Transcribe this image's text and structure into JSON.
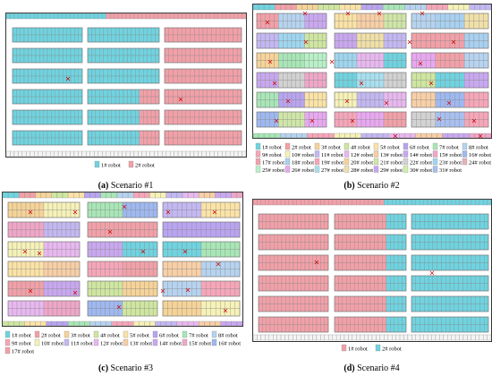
{
  "colors": {
    "r1": "#6fd3e0",
    "r2": "#f2a0a8",
    "r3": "#f6d398",
    "r4": "#cfe6a0",
    "r5": "#fbe3a6",
    "r6": "#b8a4f0",
    "r7": "#a8e6b6",
    "r8": "#b6d3f0",
    "r9": "#f6a6b8",
    "r10": "#f6f2b8",
    "r11": "#c3b8f2",
    "r12": "#e8b8f0",
    "r13": "#f8cfa6",
    "r14": "#c9a8f0",
    "r15": "#f0a6c8",
    "r16": "#9fb8f0",
    "r17": "#f2a0a8",
    "r18": "#a8d0f0",
    "r19": "#f6a6b8",
    "r20": "#f6d398",
    "r21": "#d0e6a8",
    "r22": "#d2d2d2",
    "r23": "#9fd6f0",
    "r24": "#e8b0b8",
    "r25": "#b8f0c8",
    "r26": "#e8a8f0",
    "r27": "#a8e0f0",
    "r28": "#f0e0a8",
    "r29": "#c8a8f0",
    "r30": "#d0f0a8",
    "r31": "#a8c0f0",
    "marker": "#cc0000",
    "grid": "#888888"
  },
  "panels": [
    {
      "id": "a",
      "caption_tag": "(a)",
      "caption_text": "Scenario #1",
      "legend": [
        {
          "color_key": "r1",
          "label": "1# robot"
        },
        {
          "color_key": "r2",
          "label": "2# robot"
        }
      ]
    },
    {
      "id": "b",
      "caption_tag": "(b)",
      "caption_text": "Scenario #2",
      "legend": [
        {
          "color_key": "r1",
          "label": "1# robot"
        },
        {
          "color_key": "r2",
          "label": "2# robot"
        },
        {
          "color_key": "r3",
          "label": "3# robot"
        },
        {
          "color_key": "r4",
          "label": "4# robot"
        },
        {
          "color_key": "r5",
          "label": "5# robot"
        },
        {
          "color_key": "r6",
          "label": "6# robot"
        },
        {
          "color_key": "r7",
          "label": "7# robot"
        },
        {
          "color_key": "r8",
          "label": "8# robot"
        },
        {
          "color_key": "r9",
          "label": "9# robot"
        },
        {
          "color_key": "r10",
          "label": "10# robot"
        },
        {
          "color_key": "r11",
          "label": "11# robot"
        },
        {
          "color_key": "r12",
          "label": "12# robot"
        },
        {
          "color_key": "r13",
          "label": "13# robot"
        },
        {
          "color_key": "r14",
          "label": "14# robot"
        },
        {
          "color_key": "r15",
          "label": "15# robot"
        },
        {
          "color_key": "r16",
          "label": "16# robot"
        },
        {
          "color_key": "r17",
          "label": "17# robot"
        },
        {
          "color_key": "r18",
          "label": "18# robot"
        },
        {
          "color_key": "r19",
          "label": "19# robot"
        },
        {
          "color_key": "r20",
          "label": "20# robot"
        },
        {
          "color_key": "r21",
          "label": "21# robot"
        },
        {
          "color_key": "r22",
          "label": "22# robot"
        },
        {
          "color_key": "r23",
          "label": "23# robot"
        },
        {
          "color_key": "r24",
          "label": "24# robot"
        },
        {
          "color_key": "r25",
          "label": "25# robot"
        },
        {
          "color_key": "r26",
          "label": "26# robot"
        },
        {
          "color_key": "r27",
          "label": "27# robot"
        },
        {
          "color_key": "r28",
          "label": "28# robot"
        },
        {
          "color_key": "r29",
          "label": "29# robot"
        },
        {
          "color_key": "r30",
          "label": "30# robot"
        },
        {
          "color_key": "r31",
          "label": "31# robot"
        }
      ]
    },
    {
      "id": "c",
      "caption_tag": "(c)",
      "caption_text": "Scenario #3",
      "legend": [
        {
          "color_key": "r1",
          "label": "1# robot"
        },
        {
          "color_key": "r2",
          "label": "2# robot"
        },
        {
          "color_key": "r3",
          "label": "3# robot"
        },
        {
          "color_key": "r4",
          "label": "4# robot"
        },
        {
          "color_key": "r5",
          "label": "5# robot"
        },
        {
          "color_key": "r6",
          "label": "6# robot"
        },
        {
          "color_key": "r7",
          "label": "7# robot"
        },
        {
          "color_key": "r8",
          "label": "8# robot"
        },
        {
          "color_key": "r9",
          "label": "9# robot"
        },
        {
          "color_key": "r10",
          "label": "10# robot"
        },
        {
          "color_key": "r11",
          "label": "11# robot"
        },
        {
          "color_key": "r12",
          "label": "12# robot"
        },
        {
          "color_key": "r13",
          "label": "13# robot"
        },
        {
          "color_key": "r14",
          "label": "14# robot"
        },
        {
          "color_key": "r15",
          "label": "15# robot"
        },
        {
          "color_key": "r16",
          "label": "16# robot"
        },
        {
          "color_key": "r17",
          "label": "17# robot"
        }
      ]
    },
    {
      "id": "d",
      "caption_tag": "(d)",
      "caption_text": "Scenario #4",
      "legend": [
        {
          "color_key": "r2",
          "label": "1# robot"
        },
        {
          "color_key": "r1",
          "label": "2# robot"
        }
      ]
    }
  ]
}
